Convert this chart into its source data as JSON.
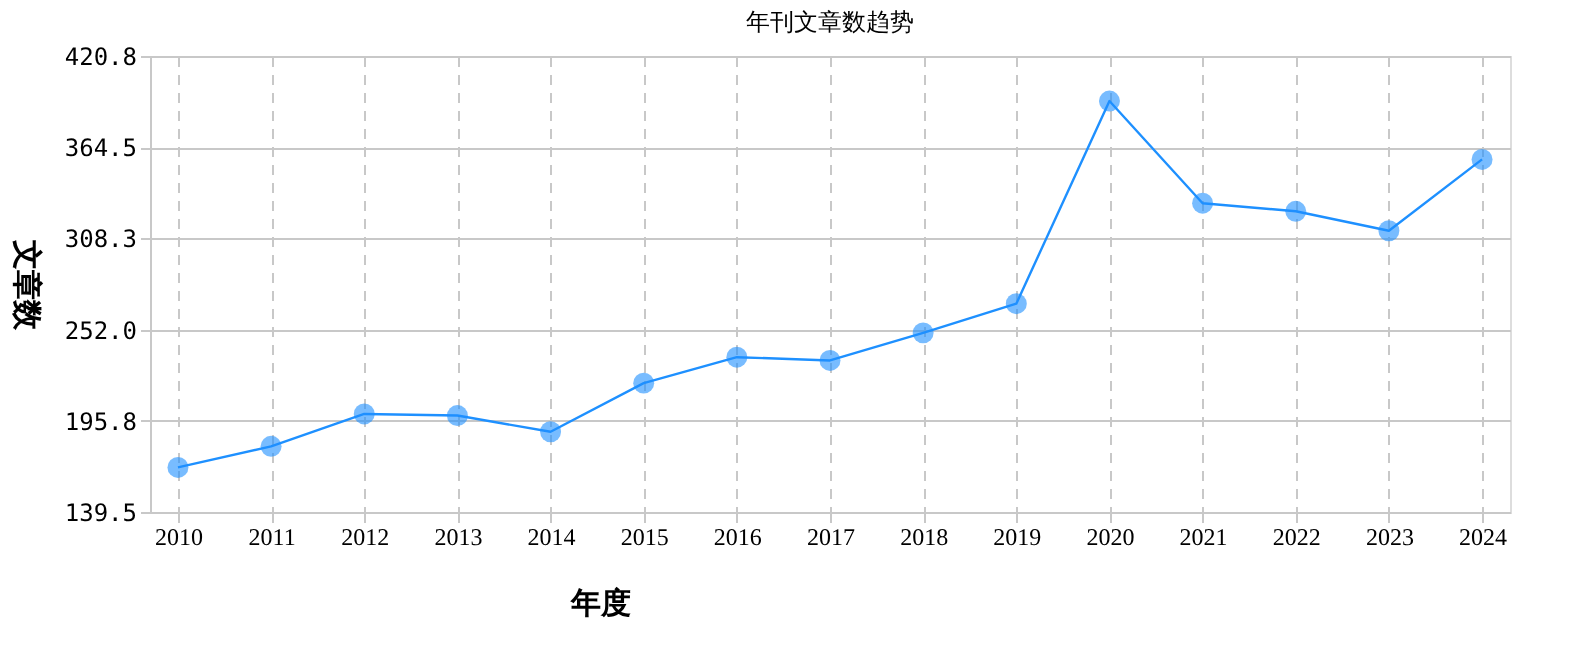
{
  "chart_data": {
    "type": "line",
    "title": "年刊文章数趋势",
    "xlabel": "年度",
    "ylabel": "文章数",
    "categories": [
      "2010",
      "2011",
      "2012",
      "2013",
      "2014",
      "2015",
      "2016",
      "2017",
      "2018",
      "2019",
      "2020",
      "2021",
      "2022",
      "2023",
      "2024"
    ],
    "series": [
      {
        "color": "#1e90ff",
        "values": [
          167,
          180,
          200,
          199,
          189,
          219,
          235,
          233,
          250,
          268,
          393,
          330,
          325,
          313,
          357
        ]
      }
    ],
    "ylim": [
      139.5,
      420.8
    ],
    "yticks": [
      {
        "value": 139.5,
        "label": "139.5"
      },
      {
        "value": 195.8,
        "label": "195.8"
      },
      {
        "value": 252.0,
        "label": "252.0"
      },
      {
        "value": 308.3,
        "label": "308.3"
      },
      {
        "value": 364.5,
        "label": "364.5"
      },
      {
        "value": 420.8,
        "label": "420.8"
      }
    ],
    "grid": true,
    "legend": false,
    "marker": "circle",
    "line_style": "solid"
  }
}
